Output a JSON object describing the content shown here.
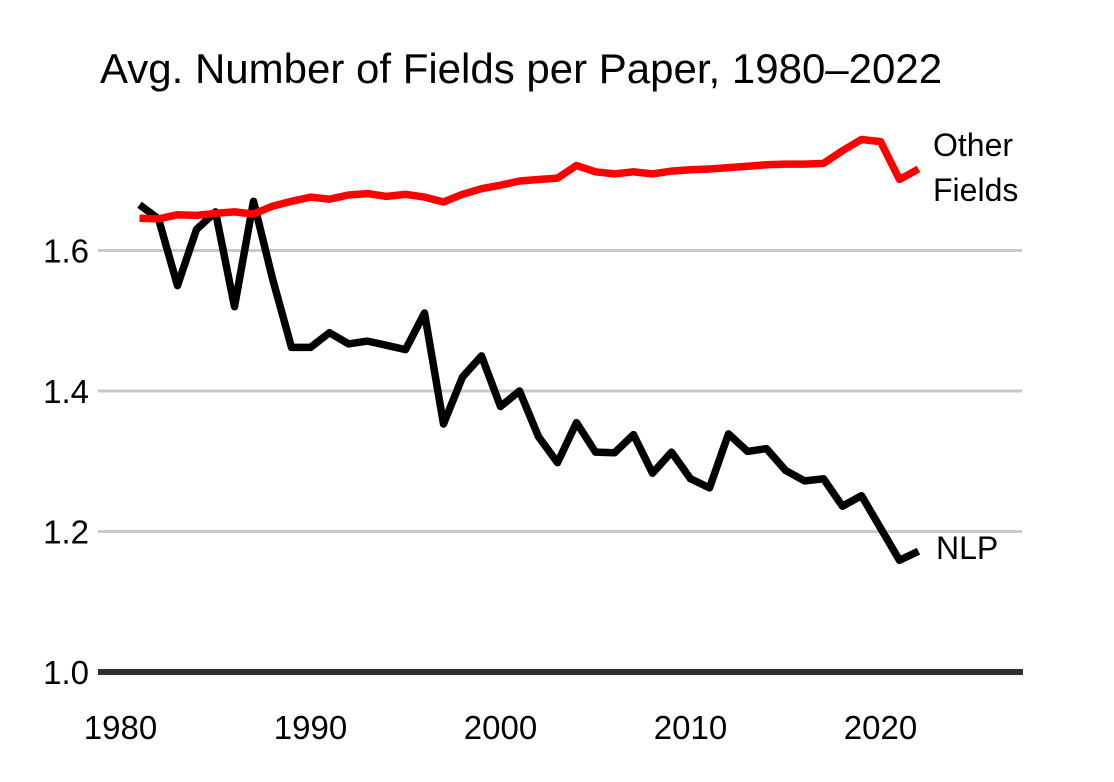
{
  "title": "Avg. Number of Fields per Paper, 1980–2022",
  "chart_data": {
    "type": "line",
    "title": "Avg. Number of Fields per Paper, 1980–2022",
    "xlabel": "",
    "ylabel": "",
    "grid": "horizontal-gridlines",
    "legend_position": "end-of-line-annotations",
    "xlim": [
      1978.8,
      2027.4
    ],
    "ylim": [
      1.0,
      1.78
    ],
    "x_ticks": [
      {
        "label": "1980",
        "value": 1980
      },
      {
        "label": "1990",
        "value": 1990
      },
      {
        "label": "2000",
        "value": 2000
      },
      {
        "label": "2010",
        "value": 2010
      },
      {
        "label": "2020",
        "value": 2020
      }
    ],
    "y_ticks": [
      {
        "label": "1.0",
        "value": 1.0
      },
      {
        "label": "1.2",
        "value": 1.2
      },
      {
        "label": "1.4",
        "value": 1.4
      },
      {
        "label": "1.6",
        "value": 1.6
      }
    ],
    "x": [
      1981,
      1982,
      1983,
      1984,
      1985,
      1986,
      1987,
      1988,
      1989,
      1990,
      1991,
      1992,
      1993,
      1994,
      1995,
      1996,
      1997,
      1998,
      1999,
      2000,
      2001,
      2002,
      2003,
      2004,
      2005,
      2006,
      2007,
      2008,
      2009,
      2010,
      2011,
      2012,
      2013,
      2014,
      2015,
      2016,
      2017,
      2018,
      2019,
      2020,
      2021,
      2022
    ],
    "series": [
      {
        "name": "NLP",
        "label": "NLP",
        "color": "#000000",
        "values": [
          1.665,
          1.645,
          1.55,
          1.63,
          1.655,
          1.52,
          1.67,
          1.56,
          1.462,
          1.462,
          1.483,
          1.467,
          1.471,
          1.465,
          1.459,
          1.511,
          1.353,
          1.42,
          1.45,
          1.378,
          1.4,
          1.335,
          1.298,
          1.355,
          1.313,
          1.312,
          1.338,
          1.283,
          1.313,
          1.275,
          1.262,
          1.339,
          1.314,
          1.318,
          1.287,
          1.272,
          1.275,
          1.236,
          1.251,
          1.205,
          1.159,
          1.172
        ]
      },
      {
        "name": "Other Fields",
        "label": "Other Fields",
        "label_lines": [
          "Other",
          "Fields"
        ],
        "color": "#ff0000",
        "values": [
          1.646,
          1.645,
          1.651,
          1.65,
          1.653,
          1.655,
          1.652,
          1.663,
          1.67,
          1.676,
          1.673,
          1.679,
          1.681,
          1.677,
          1.68,
          1.676,
          1.669,
          1.68,
          1.688,
          1.693,
          1.699,
          1.701,
          1.703,
          1.721,
          1.712,
          1.709,
          1.712,
          1.709,
          1.713,
          1.715,
          1.716,
          1.718,
          1.72,
          1.722,
          1.723,
          1.723,
          1.724,
          1.742,
          1.758,
          1.755,
          1.701,
          1.716
        ]
      }
    ],
    "colors": {
      "nlp_line": "#000000",
      "other_fields_line": "#ff0000",
      "gridline": "#c9c9c9",
      "axis_line": "#303030",
      "text": "#000000"
    }
  }
}
